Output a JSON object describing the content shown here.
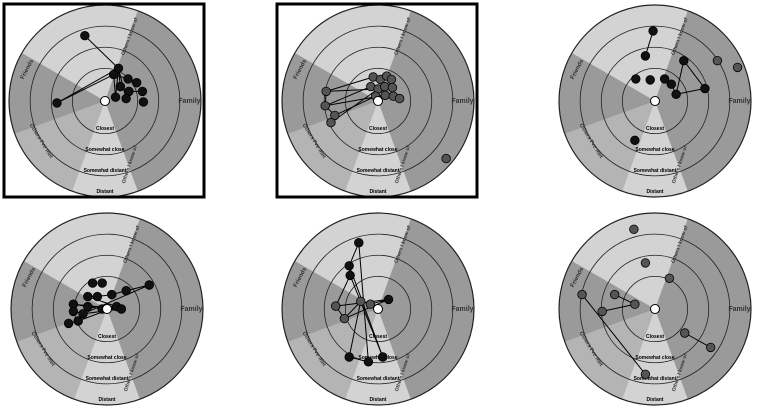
{
  "ring_labels": [
    "Closest",
    "Somewhat close",
    "Somewhat distant",
    "Distant"
  ],
  "sector_labels": {
    "friends": "Friends",
    "family": "Family",
    "others": "Others I've met",
    "others_right": "Others I know of"
  },
  "colors": {
    "light_sector": "#d3d3d3",
    "dark_sector": "#9a9a9a",
    "ring_line": "#222222",
    "node_dark": "#111111",
    "node_gray": "#555555",
    "center": "#ffffff",
    "frame": "#000000"
  },
  "diagrams": [
    {
      "id": "d1",
      "framed": true,
      "node_style": "dark",
      "nodes": [
        [
          -0.42,
          -1.36
        ],
        [
          0.28,
          -0.68
        ],
        [
          0.18,
          -0.55
        ],
        [
          0.48,
          -0.46
        ],
        [
          0.66,
          -0.38
        ],
        [
          0.32,
          -0.3
        ],
        [
          0.5,
          -0.2
        ],
        [
          0.78,
          -0.2
        ],
        [
          0.22,
          -0.08
        ],
        [
          0.44,
          -0.05
        ],
        [
          0.8,
          0.02
        ],
        [
          -1.0,
          0.04
        ]
      ],
      "edges": [
        [
          1,
          11
        ],
        [
          1,
          8
        ],
        [
          1,
          9
        ],
        [
          2,
          11
        ],
        [
          2,
          8
        ],
        [
          1,
          5
        ],
        [
          2,
          3
        ],
        [
          3,
          4
        ],
        [
          5,
          6
        ],
        [
          6,
          7
        ],
        [
          0,
          1
        ]
      ]
    },
    {
      "id": "d2",
      "framed": true,
      "node_style": "gray",
      "nodes": [
        [
          -1.08,
          -0.2
        ],
        [
          -1.1,
          0.1
        ],
        [
          -0.9,
          0.3
        ],
        [
          -0.98,
          0.45
        ],
        [
          -0.1,
          -0.5
        ],
        [
          0.05,
          -0.45
        ],
        [
          0.18,
          -0.52
        ],
        [
          0.28,
          -0.45
        ],
        [
          -0.15,
          -0.3
        ],
        [
          0.0,
          -0.25
        ],
        [
          0.14,
          -0.3
        ],
        [
          0.3,
          -0.28
        ],
        [
          -0.05,
          -0.1
        ],
        [
          0.15,
          -0.12
        ],
        [
          0.32,
          -0.1
        ],
        [
          0.45,
          -0.05
        ],
        [
          1.42,
          1.2
        ]
      ],
      "edges": [
        [
          0,
          1
        ],
        [
          1,
          2
        ],
        [
          2,
          3
        ],
        [
          0,
          4
        ],
        [
          1,
          8
        ],
        [
          2,
          12
        ],
        [
          3,
          9
        ],
        [
          4,
          5
        ],
        [
          5,
          6
        ],
        [
          6,
          7
        ],
        [
          8,
          9
        ],
        [
          9,
          10
        ],
        [
          10,
          11
        ],
        [
          12,
          13
        ],
        [
          13,
          14
        ],
        [
          14,
          15
        ],
        [
          0,
          9
        ],
        [
          1,
          13
        ]
      ]
    },
    {
      "id": "d3",
      "framed": false,
      "node_style": "mixed",
      "nodes": [
        [
          -0.04,
          -1.46
        ],
        [
          -0.2,
          -0.94
        ],
        [
          0.6,
          -0.84
        ],
        [
          1.3,
          -0.84
        ],
        [
          1.72,
          -0.7
        ],
        [
          -0.4,
          -0.46
        ],
        [
          0.2,
          -0.46
        ],
        [
          -0.1,
          -0.44
        ],
        [
          0.34,
          -0.35
        ],
        [
          1.04,
          -0.26
        ],
        [
          0.44,
          -0.14
        ],
        [
          -0.42,
          0.82
        ]
      ],
      "gray_nodes": [
        3,
        4
      ],
      "edges": [
        [
          0,
          1
        ],
        [
          2,
          10
        ],
        [
          2,
          9
        ],
        [
          8,
          10
        ],
        [
          9,
          10
        ]
      ]
    },
    {
      "id": "d4",
      "framed": false,
      "node_style": "mixed",
      "nodes": [
        [
          -0.3,
          -0.54
        ],
        [
          -0.1,
          -0.54
        ],
        [
          -0.4,
          -0.26
        ],
        [
          -0.2,
          -0.26
        ],
        [
          0.1,
          -0.3
        ],
        [
          0.4,
          -0.38
        ],
        [
          0.88,
          -0.5
        ],
        [
          -0.7,
          -0.1
        ],
        [
          -0.4,
          -0.05
        ],
        [
          -0.1,
          0.0
        ],
        [
          0.2,
          -0.05
        ],
        [
          -0.7,
          0.05
        ],
        [
          -0.5,
          0.1
        ],
        [
          -0.8,
          0.3
        ],
        [
          -0.6,
          0.25
        ],
        [
          0.3,
          0.0
        ]
      ],
      "gray_nodes": [],
      "edges": [
        [
          2,
          3
        ],
        [
          3,
          4
        ],
        [
          4,
          5
        ],
        [
          5,
          6
        ],
        [
          7,
          9
        ],
        [
          8,
          10
        ],
        [
          9,
          15
        ],
        [
          11,
          12
        ],
        [
          12,
          15
        ],
        [
          13,
          14
        ],
        [
          14,
          10
        ],
        [
          2,
          10
        ],
        [
          7,
          15
        ],
        [
          6,
          12
        ]
      ]
    },
    {
      "id": "d5",
      "framed": false,
      "node_style": "mixed",
      "nodes": [
        [
          -0.4,
          -1.38
        ],
        [
          -0.6,
          -0.9
        ],
        [
          -0.58,
          -0.7
        ],
        [
          -0.88,
          -0.06
        ],
        [
          -0.7,
          0.2
        ],
        [
          -0.36,
          -0.16
        ],
        [
          -0.16,
          -0.1
        ],
        [
          0.22,
          -0.2
        ],
        [
          -0.6,
          1.0
        ],
        [
          -0.2,
          1.1
        ],
        [
          0.1,
          1.0
        ]
      ],
      "gray_nodes": [
        3,
        4,
        5,
        6
      ],
      "edges": [
        [
          0,
          1
        ],
        [
          1,
          2
        ],
        [
          2,
          3
        ],
        [
          3,
          4
        ],
        [
          4,
          5
        ],
        [
          5,
          6
        ],
        [
          6,
          7
        ],
        [
          0,
          9
        ],
        [
          1,
          10
        ],
        [
          3,
          7
        ],
        [
          4,
          7
        ],
        [
          5,
          8
        ],
        [
          8,
          9
        ],
        [
          2,
          10
        ]
      ]
    },
    {
      "id": "d6",
      "framed": false,
      "node_style": "gray",
      "nodes": [
        [
          -0.44,
          -1.66
        ],
        [
          -0.2,
          -0.96
        ],
        [
          0.3,
          -0.64
        ],
        [
          -1.52,
          -0.3
        ],
        [
          -0.84,
          -0.3
        ],
        [
          -0.42,
          -0.1
        ],
        [
          -1.1,
          0.05
        ],
        [
          0.62,
          0.5
        ],
        [
          1.16,
          0.8
        ],
        [
          -0.2,
          1.36
        ]
      ],
      "edges": [
        [
          3,
          9
        ],
        [
          4,
          5
        ],
        [
          5,
          6
        ],
        [
          7,
          8
        ]
      ]
    }
  ]
}
